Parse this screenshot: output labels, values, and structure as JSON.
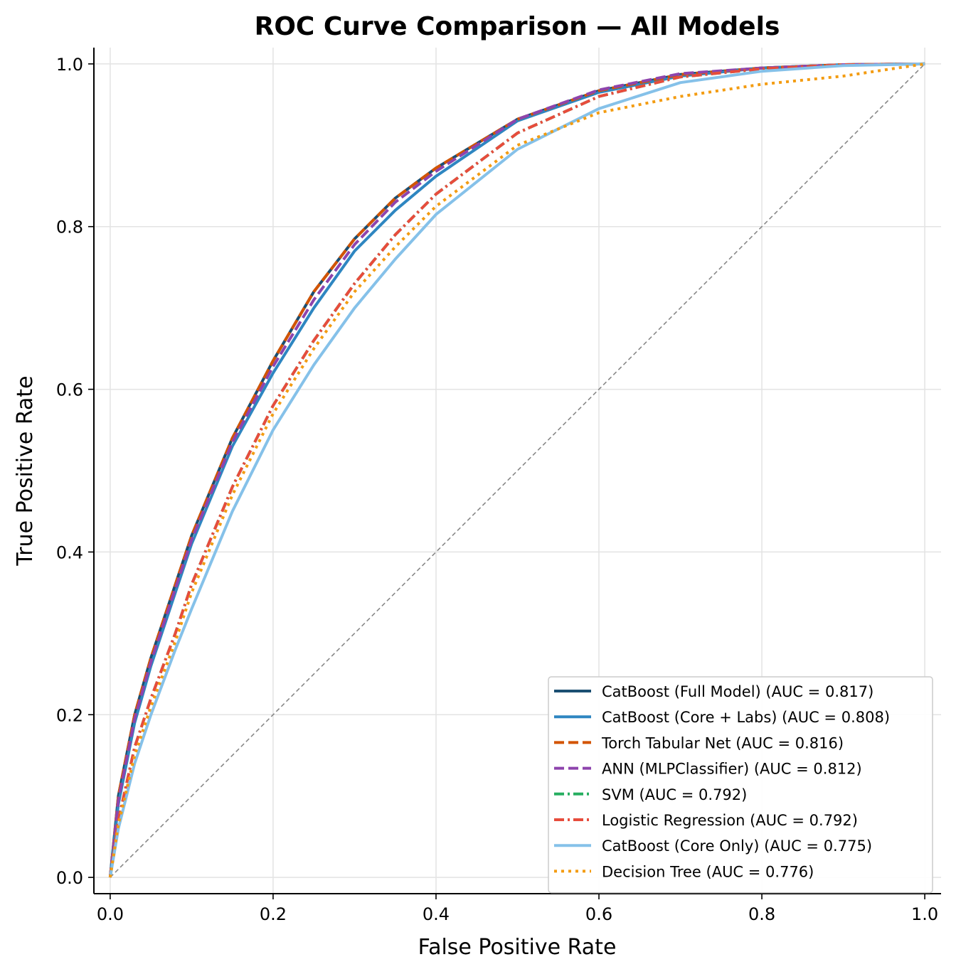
{
  "chart_data": {
    "type": "line",
    "title": "ROC Curve Comparison — All Models",
    "xlabel": "False Positive Rate",
    "ylabel": "True Positive Rate",
    "xlim": [
      -0.02,
      1.02
    ],
    "ylim": [
      -0.02,
      1.02
    ],
    "xticks": [
      "0.0",
      "0.2",
      "0.4",
      "0.6",
      "0.8",
      "1.0"
    ],
    "yticks": [
      "0.0",
      "0.2",
      "0.4",
      "0.6",
      "0.8",
      "1.0"
    ],
    "grid": true,
    "legend_position": "lower-right",
    "diagonal": {
      "x": [
        0,
        1
      ],
      "y": [
        0,
        1
      ],
      "color": "#888888",
      "style": "dashed"
    },
    "series": [
      {
        "name": "CatBoost (Full Model) (AUC = 0.817)",
        "color": "#1b4f72",
        "style": "solid",
        "x": [
          0,
          0.01,
          0.03,
          0.05,
          0.08,
          0.1,
          0.15,
          0.2,
          0.25,
          0.3,
          0.35,
          0.4,
          0.5,
          0.6,
          0.7,
          0.8,
          0.9,
          1.0
        ],
        "y": [
          0,
          0.1,
          0.2,
          0.27,
          0.36,
          0.42,
          0.54,
          0.635,
          0.72,
          0.785,
          0.835,
          0.872,
          0.932,
          0.967,
          0.987,
          0.995,
          0.999,
          1.0
        ]
      },
      {
        "name": "CatBoost (Core + Labs) (AUC = 0.808)",
        "color": "#2e86c1",
        "style": "solid",
        "x": [
          0,
          0.01,
          0.03,
          0.05,
          0.08,
          0.1,
          0.15,
          0.2,
          0.25,
          0.3,
          0.35,
          0.4,
          0.5,
          0.6,
          0.7,
          0.8,
          0.9,
          1.0
        ],
        "y": [
          0,
          0.09,
          0.19,
          0.26,
          0.35,
          0.41,
          0.53,
          0.62,
          0.7,
          0.77,
          0.82,
          0.862,
          0.93,
          0.965,
          0.985,
          0.995,
          0.999,
          1.0
        ]
      },
      {
        "name": "Torch Tabular Net (AUC = 0.816)",
        "color": "#d35400",
        "style": "dashed",
        "x": [
          0,
          0.01,
          0.03,
          0.05,
          0.08,
          0.1,
          0.15,
          0.2,
          0.25,
          0.3,
          0.35,
          0.4,
          0.5,
          0.6,
          0.7,
          0.8,
          0.9,
          1.0
        ],
        "y": [
          0,
          0.1,
          0.2,
          0.27,
          0.36,
          0.42,
          0.54,
          0.635,
          0.72,
          0.785,
          0.835,
          0.872,
          0.932,
          0.967,
          0.987,
          0.995,
          0.999,
          1.0
        ]
      },
      {
        "name": "ANN (MLPClassifier) (AUC = 0.812)",
        "color": "#8e44ad",
        "style": "dashed",
        "x": [
          0,
          0.01,
          0.03,
          0.05,
          0.08,
          0.1,
          0.15,
          0.2,
          0.25,
          0.3,
          0.35,
          0.4,
          0.5,
          0.6,
          0.7,
          0.8,
          0.9,
          1.0
        ],
        "y": [
          0,
          0.095,
          0.195,
          0.265,
          0.355,
          0.415,
          0.535,
          0.628,
          0.71,
          0.778,
          0.83,
          0.868,
          0.932,
          0.968,
          0.988,
          0.995,
          0.999,
          1.0
        ]
      },
      {
        "name": "SVM (AUC = 0.792)",
        "color": "#27ae60",
        "style": "dashdot",
        "x": [
          0,
          0.01,
          0.03,
          0.05,
          0.08,
          0.1,
          0.15,
          0.2,
          0.25,
          0.3,
          0.35,
          0.4,
          0.5,
          0.6,
          0.7,
          0.8,
          0.9,
          1.0
        ],
        "y": [
          0,
          0.07,
          0.16,
          0.22,
          0.3,
          0.36,
          0.48,
          0.58,
          0.66,
          0.73,
          0.79,
          0.84,
          0.915,
          0.96,
          0.984,
          0.994,
          0.999,
          1.0
        ]
      },
      {
        "name": "Logistic Regression (AUC = 0.792)",
        "color": "#e74c3c",
        "style": "dashdot",
        "x": [
          0,
          0.01,
          0.03,
          0.05,
          0.08,
          0.1,
          0.15,
          0.2,
          0.25,
          0.3,
          0.35,
          0.4,
          0.5,
          0.6,
          0.7,
          0.8,
          0.9,
          1.0
        ],
        "y": [
          0,
          0.07,
          0.16,
          0.22,
          0.3,
          0.36,
          0.48,
          0.58,
          0.66,
          0.73,
          0.79,
          0.84,
          0.915,
          0.96,
          0.984,
          0.994,
          0.999,
          1.0
        ]
      },
      {
        "name": "CatBoost (Core Only) (AUC = 0.775)",
        "color": "#85c1e9",
        "style": "solid",
        "x": [
          0,
          0.01,
          0.03,
          0.05,
          0.08,
          0.1,
          0.15,
          0.2,
          0.25,
          0.3,
          0.35,
          0.4,
          0.5,
          0.6,
          0.7,
          0.8,
          0.9,
          1.0
        ],
        "y": [
          0,
          0.06,
          0.14,
          0.2,
          0.28,
          0.33,
          0.45,
          0.55,
          0.63,
          0.7,
          0.76,
          0.815,
          0.895,
          0.945,
          0.977,
          0.991,
          0.998,
          1.0
        ]
      },
      {
        "name": "Decision Tree (AUC = 0.776)",
        "color": "#f39c12",
        "style": "dotted",
        "x": [
          0,
          0.01,
          0.03,
          0.05,
          0.08,
          0.1,
          0.15,
          0.2,
          0.25,
          0.3,
          0.35,
          0.4,
          0.5,
          0.6,
          0.7,
          0.8,
          0.9,
          1.0
        ],
        "y": [
          0,
          0.065,
          0.15,
          0.21,
          0.29,
          0.35,
          0.47,
          0.57,
          0.65,
          0.72,
          0.775,
          0.825,
          0.9,
          0.94,
          0.96,
          0.975,
          0.985,
          1.0
        ]
      }
    ]
  }
}
